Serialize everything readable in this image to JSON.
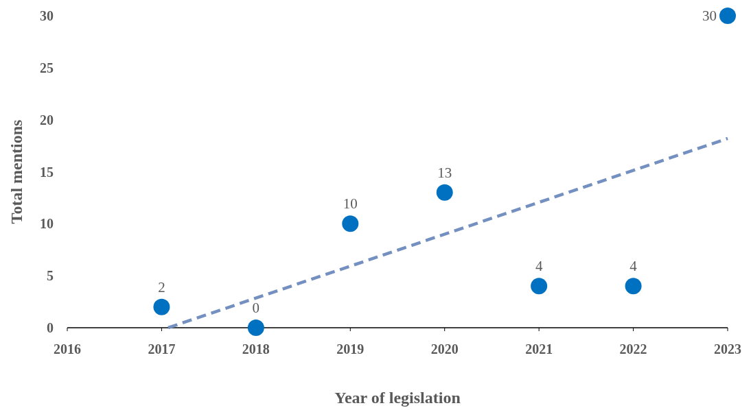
{
  "chart_data": {
    "type": "scatter",
    "xlabel": "Year of legislation",
    "ylabel": "Total mentions",
    "xlim": [
      2016,
      2023
    ],
    "xticks": [
      2016,
      2017,
      2018,
      2019,
      2020,
      2021,
      2022,
      2023
    ],
    "ylim": [
      0,
      30
    ],
    "yticks": [
      0,
      5,
      10,
      15,
      20,
      25,
      30
    ],
    "grid": false,
    "series": [
      {
        "color": "#0070c0",
        "marker": "circle",
        "x": [
          2017,
          2018,
          2019,
          2020,
          2021,
          2022,
          2023
        ],
        "values": [
          2,
          0,
          10,
          13,
          4,
          4,
          30
        ],
        "value_labels": [
          "2",
          "0",
          "10",
          "13",
          "4",
          "4",
          "30"
        ]
      },
      {
        "type": "line",
        "color": "#7490c0",
        "line_style": "dashed",
        "marker": "none",
        "x": [
          2017.07,
          2023
        ],
        "values": [
          0,
          18.2
        ]
      }
    ]
  }
}
